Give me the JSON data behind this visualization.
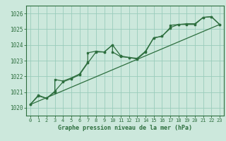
{
  "xlabel": "Graphe pression niveau de la mer (hPa)",
  "background_color": "#cce8dc",
  "grid_color": "#99ccbb",
  "line_color": "#2d6e3e",
  "ylim": [
    1019.5,
    1026.5
  ],
  "xlim": [
    -0.5,
    23.5
  ],
  "yticks": [
    1020,
    1021,
    1022,
    1023,
    1024,
    1025,
    1026
  ],
  "xticks": [
    0,
    1,
    2,
    3,
    4,
    5,
    6,
    7,
    8,
    9,
    10,
    11,
    12,
    13,
    14,
    15,
    16,
    17,
    18,
    19,
    20,
    21,
    22,
    23
  ],
  "series1": [
    [
      0,
      1020.2
    ],
    [
      1,
      1020.8
    ],
    [
      2,
      1020.6
    ],
    [
      3,
      1021.0
    ],
    [
      3,
      1021.8
    ],
    [
      4,
      1021.7
    ],
    [
      5,
      1021.9
    ],
    [
      6,
      1022.15
    ],
    [
      7,
      1022.9
    ],
    [
      7,
      1023.5
    ],
    [
      8,
      1023.6
    ],
    [
      9,
      1023.55
    ],
    [
      10,
      1024.0
    ],
    [
      10,
      1023.55
    ],
    [
      11,
      1023.25
    ],
    [
      12,
      1023.2
    ],
    [
      13,
      1023.1
    ],
    [
      14,
      1023.55
    ],
    [
      15,
      1024.45
    ],
    [
      16,
      1024.55
    ],
    [
      17,
      1025.05
    ],
    [
      17,
      1025.25
    ],
    [
      18,
      1025.3
    ],
    [
      19,
      1025.3
    ],
    [
      20,
      1025.3
    ],
    [
      21,
      1025.75
    ],
    [
      22,
      1025.8
    ],
    [
      23,
      1025.3
    ]
  ],
  "series_trend_x": [
    0,
    23
  ],
  "series_trend_y": [
    1020.2,
    1025.3
  ],
  "series3": [
    [
      0,
      1020.2
    ],
    [
      1,
      1020.75
    ],
    [
      2,
      1020.6
    ],
    [
      3,
      1021.05
    ],
    [
      4,
      1021.65
    ],
    [
      5,
      1021.85
    ],
    [
      6,
      1022.1
    ],
    [
      7,
      1022.85
    ],
    [
      8,
      1023.55
    ],
    [
      9,
      1023.55
    ],
    [
      10,
      1024.0
    ],
    [
      11,
      1023.3
    ],
    [
      12,
      1023.2
    ],
    [
      13,
      1023.15
    ],
    [
      14,
      1023.6
    ],
    [
      15,
      1024.45
    ],
    [
      16,
      1024.55
    ],
    [
      17,
      1025.1
    ],
    [
      18,
      1025.3
    ],
    [
      19,
      1025.35
    ],
    [
      20,
      1025.35
    ],
    [
      21,
      1025.75
    ],
    [
      22,
      1025.8
    ],
    [
      23,
      1025.3
    ]
  ]
}
